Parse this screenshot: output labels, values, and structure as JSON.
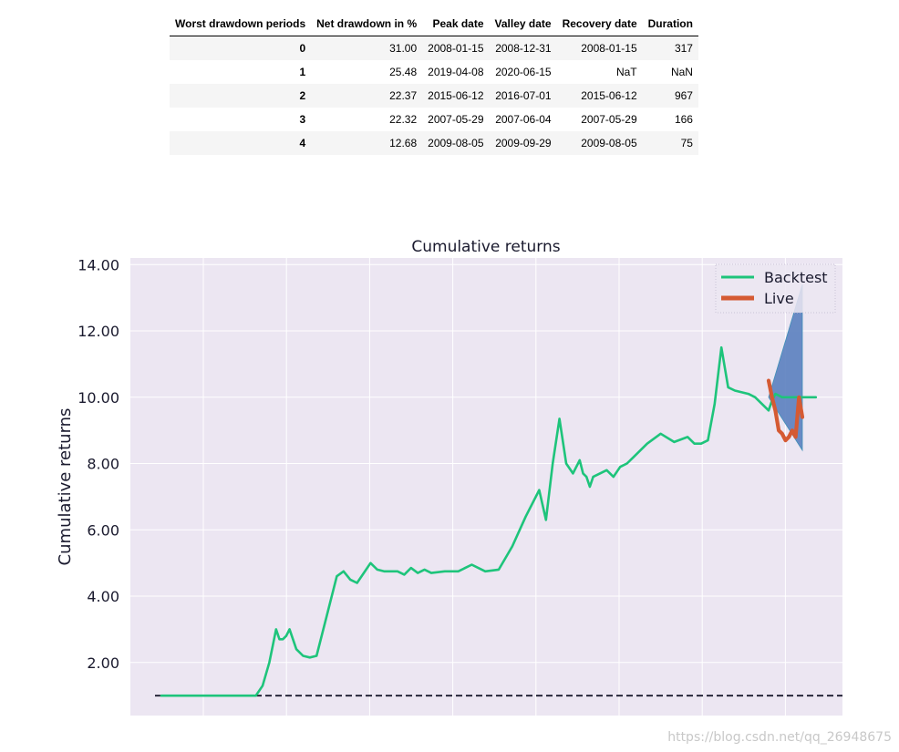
{
  "table": {
    "headers": [
      "Worst drawdown periods",
      "Net drawdown in %",
      "Peak date",
      "Valley date",
      "Recovery date",
      "Duration"
    ],
    "rows": [
      [
        "0",
        "31.00",
        "2008-01-15",
        "2008-12-31",
        "2008-01-15",
        "317"
      ],
      [
        "1",
        "25.48",
        "2019-04-08",
        "2020-06-15",
        "NaT",
        "NaN"
      ],
      [
        "2",
        "22.37",
        "2015-06-12",
        "2016-07-01",
        "2015-06-12",
        "967"
      ],
      [
        "3",
        "22.32",
        "2007-05-29",
        "2007-06-04",
        "2007-05-29",
        "166"
      ],
      [
        "4",
        "12.68",
        "2009-08-05",
        "2009-09-29",
        "2009-08-05",
        "75"
      ]
    ]
  },
  "watermark": "https://blog.csdn.net/qq_26948675",
  "colors": {
    "backtest": "#1ec47b",
    "live": "#d55a33",
    "cone": "#5b7fbf",
    "plot_bg": "#ece6f2",
    "grid": "#ffffff",
    "baseline": "#1a1a2e"
  },
  "chart_data": {
    "type": "line",
    "title": "Cumulative returns",
    "ylabel": "Cumulative returns",
    "xlabel": "",
    "ylim": [
      0.4,
      14.2
    ],
    "yticks": [
      "2.00",
      "4.00",
      "6.00",
      "8.00",
      "10.00",
      "12.00",
      "14.00"
    ],
    "grid": true,
    "legend": {
      "placement": "top-right",
      "entries": [
        "Backtest",
        "Live"
      ]
    },
    "baseline": 1.0,
    "series": [
      {
        "name": "Backtest",
        "x": [
          0,
          0.07,
          0.14,
          0.15,
          0.16,
          0.165,
          0.17,
          0.175,
          0.18,
          0.185,
          0.19,
          0.195,
          0.2,
          0.21,
          0.22,
          0.23,
          0.24,
          0.245,
          0.25,
          0.255,
          0.26,
          0.27,
          0.28,
          0.29,
          0.3,
          0.31,
          0.32,
          0.33,
          0.34,
          0.35,
          0.36,
          0.37,
          0.38,
          0.39,
          0.4,
          0.42,
          0.44,
          0.46,
          0.48,
          0.5,
          0.52,
          0.54,
          0.56,
          0.57,
          0.58,
          0.59,
          0.6,
          0.61,
          0.62,
          0.625,
          0.63,
          0.635,
          0.64,
          0.65,
          0.66,
          0.67,
          0.68,
          0.69,
          0.7,
          0.72,
          0.74,
          0.76,
          0.78,
          0.79,
          0.8,
          0.81,
          0.82,
          0.83,
          0.84,
          0.85,
          0.87,
          0.88,
          0.89,
          0.9,
          0.905,
          0.91,
          0.92,
          0.93,
          0.94,
          0.95,
          0.96,
          0.97
        ],
        "values": [
          1.0,
          1.0,
          1.0,
          1.3,
          2.0,
          2.5,
          3.0,
          2.7,
          2.7,
          2.8,
          3.0,
          2.7,
          2.4,
          2.2,
          2.15,
          2.2,
          3.0,
          3.4,
          3.8,
          4.2,
          4.6,
          4.75,
          4.5,
          4.4,
          4.7,
          5.0,
          4.8,
          4.75,
          4.75,
          4.75,
          4.65,
          4.85,
          4.7,
          4.8,
          4.7,
          4.75,
          4.75,
          4.95,
          4.75,
          4.8,
          5.5,
          6.4,
          7.2,
          6.3,
          8.0,
          9.35,
          8.0,
          7.7,
          8.1,
          7.7,
          7.6,
          7.3,
          7.6,
          7.7,
          7.8,
          7.6,
          7.9,
          8.0,
          8.2,
          8.6,
          8.9,
          8.65,
          8.8,
          8.6,
          8.6,
          8.7,
          9.8,
          11.5,
          10.3,
          10.2,
          10.1,
          10.0,
          9.8,
          9.6,
          9.9,
          10.1,
          10.0,
          10.0,
          10.0,
          10.0,
          10.0,
          10.0
        ]
      },
      {
        "name": "Live",
        "x": [
          0.9,
          0.905,
          0.91,
          0.915,
          0.92,
          0.925,
          0.93,
          0.935,
          0.94,
          0.945,
          0.95
        ],
        "values": [
          10.5,
          10.0,
          9.6,
          9.0,
          8.9,
          8.7,
          8.8,
          9.0,
          8.8,
          10.0,
          9.4
        ]
      }
    ],
    "cone": {
      "x": [
        0.9,
        0.95
      ],
      "upper": [
        10.0,
        13.4
      ],
      "lower": [
        10.0,
        8.4
      ]
    }
  }
}
